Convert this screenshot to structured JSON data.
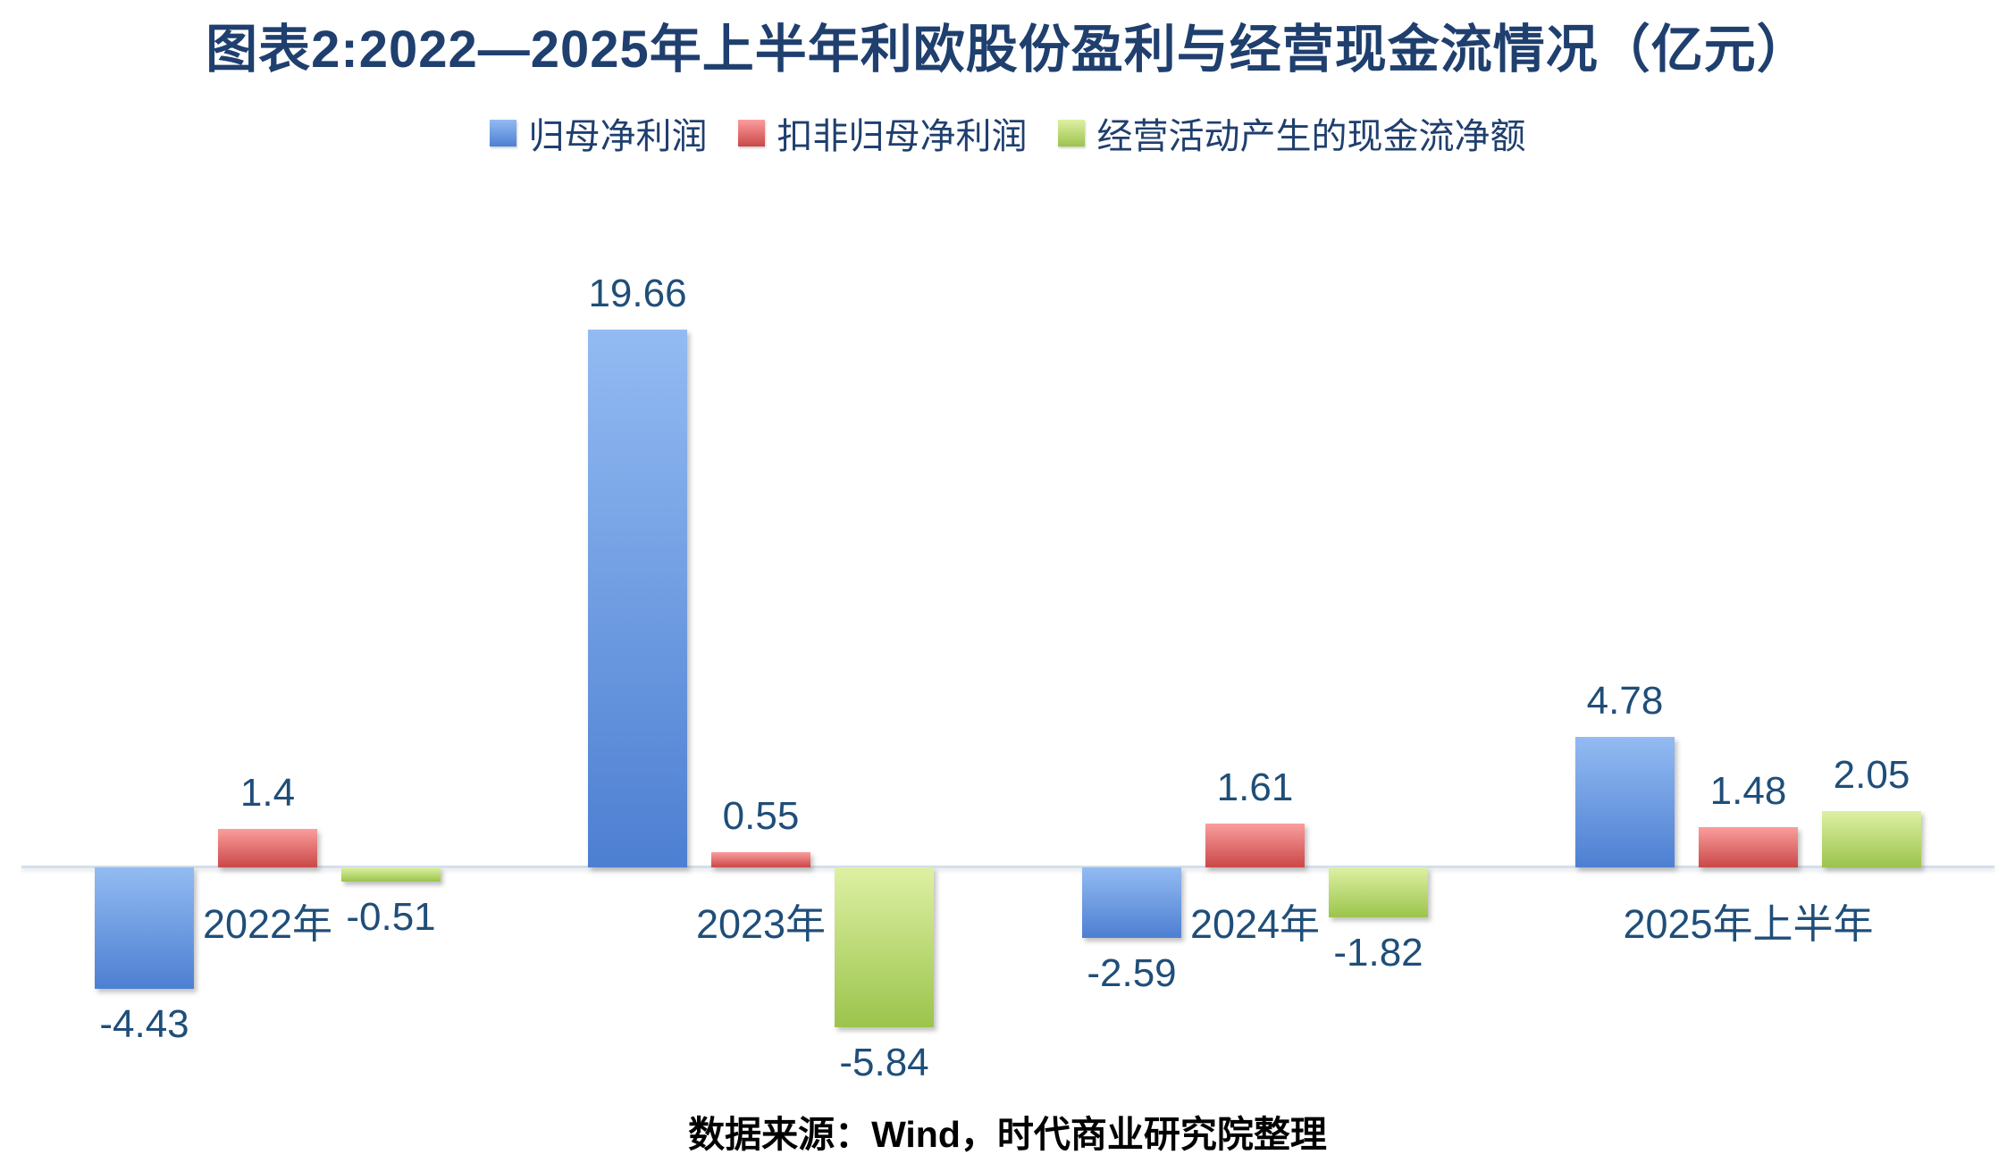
{
  "title": "图表2:2022—2025年上半年利欧股份盈利与经营现金流情况（亿元）",
  "source_note": {
    "prefix": "数据来源：",
    "vendor": "Wind",
    "suffix": "，时代商业研究院整理"
  },
  "colors": {
    "title_text": "#1f3f6e",
    "label_text": "#1f4e79",
    "axis_line": "#d3e0ec",
    "background": "#ffffff"
  },
  "chart_data": {
    "type": "bar",
    "title": "图表2:2022—2025年上半年利欧股份盈利与经营现金流情况（亿元）",
    "categories": [
      "2022年",
      "2023年",
      "2024年",
      "2025年上半年"
    ],
    "series": [
      {
        "name": "归母净利润",
        "values": [
          -4.43,
          19.66,
          -2.59,
          4.78
        ],
        "labels": [
          "-4.43",
          "19.66",
          "-2.59",
          "4.78"
        ],
        "color_top": "#93bbf2",
        "color_bottom": "#4d7fd2"
      },
      {
        "name": "扣非归母净利润",
        "values": [
          1.4,
          0.55,
          1.61,
          1.48
        ],
        "labels": [
          "1.4",
          "0.55",
          "1.61",
          "1.48"
        ],
        "color_top": "#fb9d9d",
        "color_bottom": "#ca4848"
      },
      {
        "name": "经营活动产生的现金流净额",
        "values": [
          -0.51,
          -5.84,
          -1.82,
          2.05
        ],
        "labels": [
          "-0.51",
          "-5.84",
          "-1.82",
          "2.05"
        ],
        "color_top": "#def0a3",
        "color_bottom": "#9bc44c"
      }
    ],
    "ylim": [
      -5.84,
      19.66
    ],
    "grid": false,
    "legend_position": "top",
    "value_labels": true,
    "xlabel": "",
    "ylabel": ""
  }
}
